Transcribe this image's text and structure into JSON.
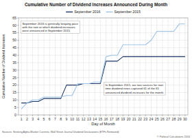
{
  "chart_data": {
    "type": "line",
    "title": "Cumulative Number of Dividend Increases Announced During Month",
    "x_label": "Day of Month",
    "y_label": "Cumulative Number of Dividend Increases",
    "annotations": [
      "September 2016 is generally keeping pace\nwith the rate at which dividend increases\nwere announced in September 2015.",
      "In September 2015, our two sources for real-\ntime dividend news captured 61 of the 65\nannounced dividend increases for the month."
    ],
    "source": "Sources: Seeking Alpha Market Currents, Wall Street Journal Dividend Declarations (ETFs Removed)",
    "copyright": "© Political Calculations 2016",
    "x": [
      1,
      2,
      3,
      4,
      5,
      6,
      7,
      8,
      9,
      10,
      11,
      12,
      13,
      14,
      15,
      16,
      17,
      18,
      19,
      20,
      21,
      22,
      23,
      24,
      25,
      26,
      27,
      28,
      29,
      30
    ],
    "series": [
      {
        "name": "September 2016",
        "color": "#1F3864",
        "values": [
          8,
          8,
          9,
          9,
          11,
          11,
          11,
          11,
          20,
          20,
          20,
          21,
          21,
          21,
          21,
          36,
          36,
          36,
          39,
          39,
          39,
          39,
          39,
          39,
          39,
          39,
          39,
          39,
          39,
          39
        ]
      },
      {
        "name": "September 2015",
        "color": "#9DC3E6",
        "values": [
          4,
          8,
          10,
          10,
          12,
          12,
          12,
          12,
          13,
          13,
          21,
          21,
          21,
          22,
          22,
          39,
          40,
          40,
          47,
          47,
          47,
          47,
          47,
          50,
          56,
          56,
          56,
          56,
          61,
          61
        ]
      }
    ],
    "xlim": [
      0.5,
      30.5
    ],
    "xticks": [
      1,
      2,
      3,
      4,
      5,
      6,
      7,
      8,
      9,
      10,
      11,
      12,
      13,
      14,
      15,
      16,
      17,
      18,
      19,
      20,
      21,
      22,
      23,
      24,
      25,
      26,
      27,
      28,
      29,
      30
    ],
    "ylim": [
      0,
      65
    ],
    "yticks": [
      0,
      5,
      10,
      15,
      20,
      25,
      30,
      35,
      40,
      45,
      50,
      55,
      60,
      65
    ],
    "grid": true,
    "legend": "top"
  }
}
